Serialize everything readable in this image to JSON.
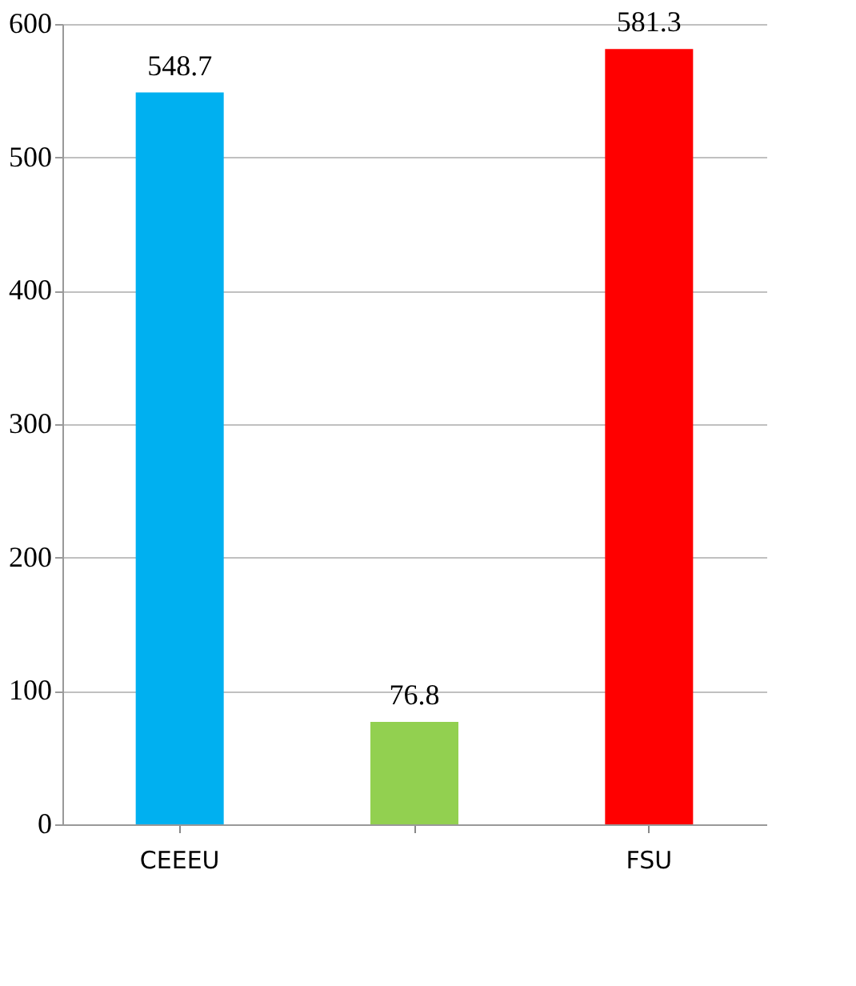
{
  "chart_data": {
    "type": "bar",
    "categories": [
      "CEEEU",
      null,
      "FSU"
    ],
    "values": [
      548.7,
      76.8,
      581.3
    ],
    "colors": [
      "#00b0f0",
      "#92d050",
      "#ff0000"
    ],
    "ylim": [
      0,
      600
    ],
    "yticks": [
      0,
      100,
      200,
      300,
      400,
      500,
      600
    ],
    "grid": "y",
    "data_labels": true
  }
}
